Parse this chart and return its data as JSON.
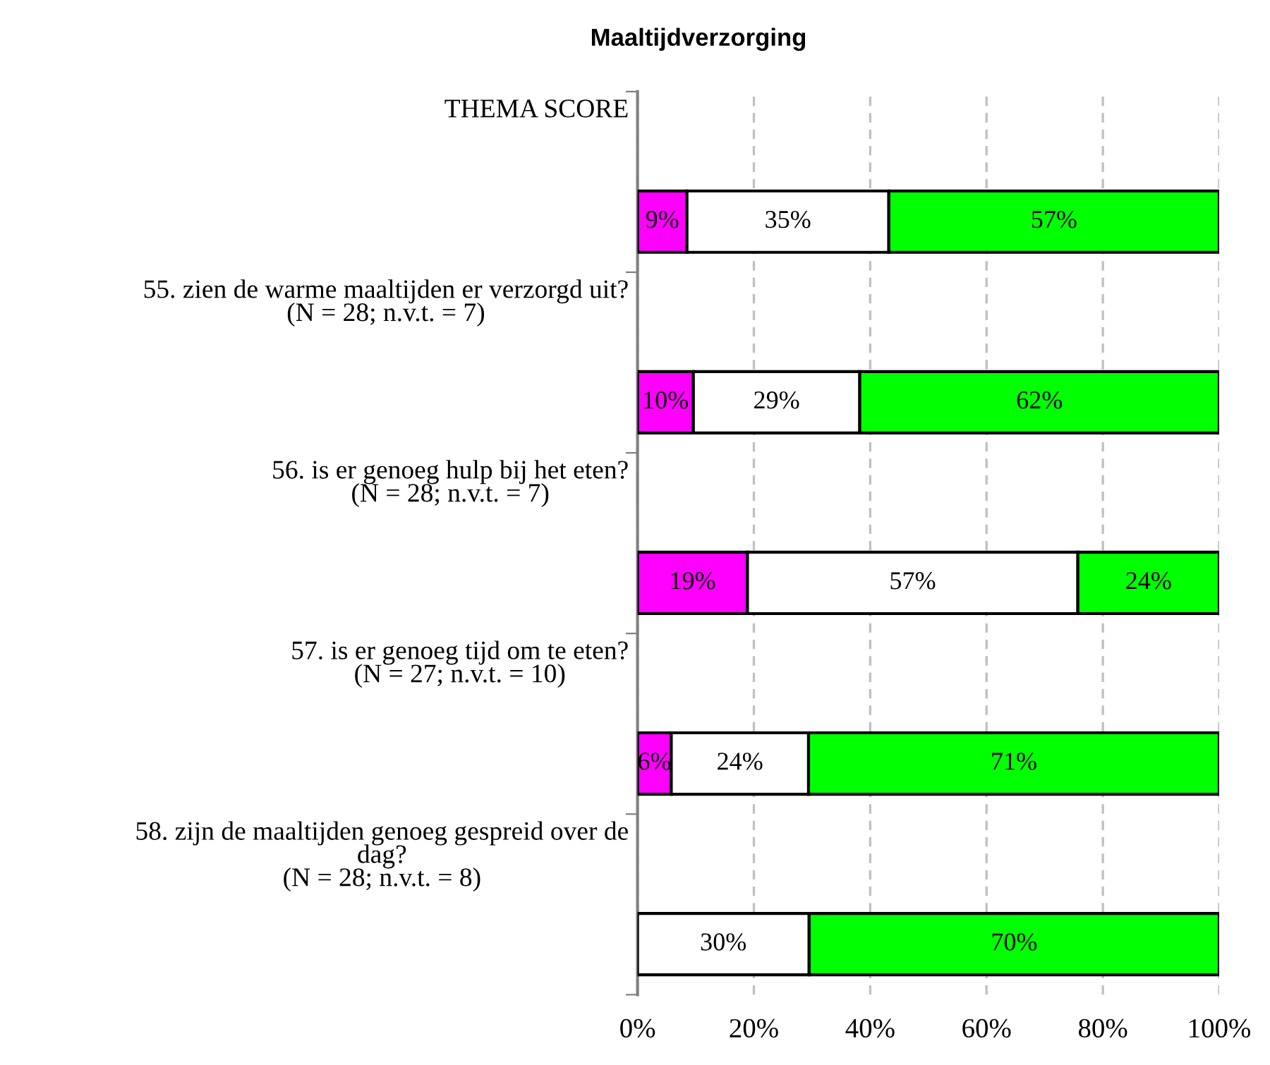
{
  "chart_data": {
    "type": "bar",
    "orientation": "horizontal",
    "stacked": true,
    "title": "Maaltijdverzorging",
    "categories": [
      "THEMA SCORE",
      "55. zien de warme maaltijden er verzorgd uit?\n(N = 28; n.v.t. = 7)",
      "56. is er genoeg hulp bij het eten?\n(N = 28; n.v.t. = 7)",
      "57. is er genoeg tijd om te eten?\n(N = 27; n.v.t. = 10)",
      "58. zijn de maaltijden genoeg gespreid over de\ndag?\n(N = 28; n.v.t. = 8)"
    ],
    "series": [
      {
        "color": "#ff00ff",
        "values": [
          8.5,
          9.6,
          18.9,
          5.8,
          0
        ],
        "value_labels": [
          "9%",
          "10%",
          "19%",
          "6%",
          null
        ]
      },
      {
        "color": "#ffffff",
        "values": [
          34.7,
          28.6,
          56.8,
          23.6,
          29.5
        ],
        "value_labels": [
          "35%",
          "29%",
          "57%",
          "24%",
          "30%"
        ]
      },
      {
        "color": "#00ff00",
        "values": [
          56.8,
          61.8,
          24.3,
          70.6,
          70.5
        ],
        "value_labels": [
          "57%",
          "62%",
          "24%",
          "71%",
          "70%"
        ]
      }
    ],
    "xlim": [
      0,
      100
    ],
    "xticks": [
      {
        "value": 0,
        "label": "0%"
      },
      {
        "value": 20,
        "label": "20%"
      },
      {
        "value": 40,
        "label": "40%"
      },
      {
        "value": 60,
        "label": "60%"
      },
      {
        "value": 80,
        "label": "80%"
      },
      {
        "value": 100,
        "label": "100%"
      }
    ],
    "grid": "x",
    "legend": false
  }
}
